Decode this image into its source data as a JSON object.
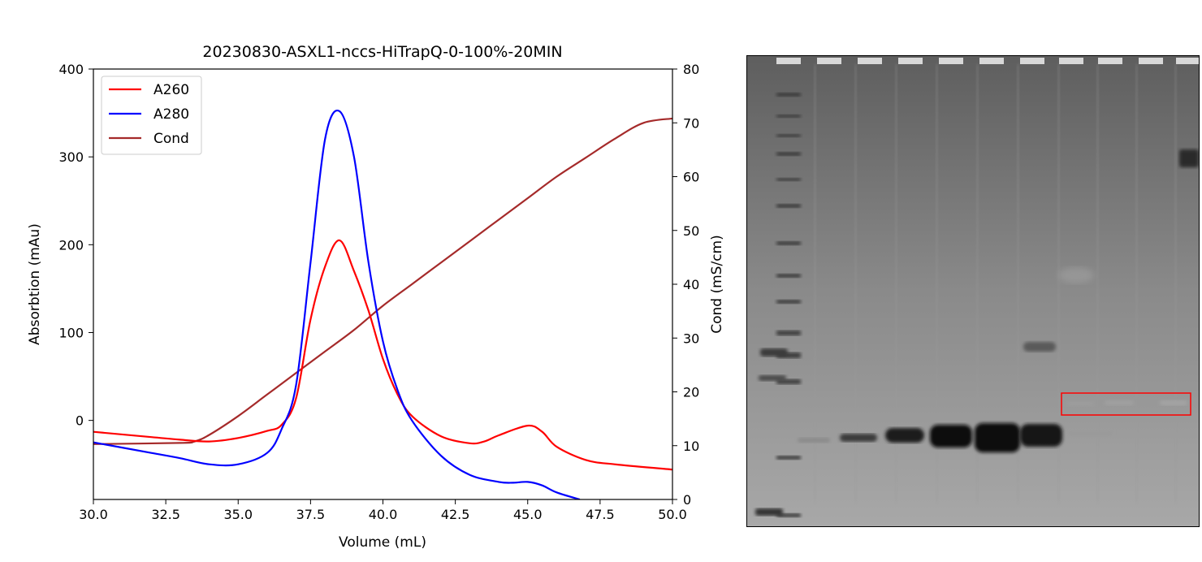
{
  "chart_data": {
    "type": "line",
    "title": "20230830-ASXL1-nccs-HiTrapQ-0-100%-20MIN",
    "xlabel": "Volume (mL)",
    "ylabel": "Absorbtion (mAu)",
    "y2label": "Cond (mS/cm)",
    "xlim": [
      30,
      50
    ],
    "ylim": [
      -90,
      400
    ],
    "y2lim": [
      0,
      80
    ],
    "xticks": [
      "30.0",
      "32.5",
      "35.0",
      "37.5",
      "40.0",
      "42.5",
      "45.0",
      "47.5",
      "50.0"
    ],
    "yticks": [
      "0",
      "100",
      "200",
      "300",
      "400"
    ],
    "y2ticks": [
      "0",
      "10",
      "20",
      "30",
      "40",
      "50",
      "60",
      "70",
      "80"
    ],
    "legend_position": "top-left",
    "series": [
      {
        "name": "A260",
        "axis": "left",
        "color": "#ff0000",
        "x": [
          30,
          32,
          33,
          34,
          35,
          36,
          36.5,
          37,
          37.5,
          38,
          38.5,
          39,
          39.5,
          40,
          40.5,
          41,
          42,
          43,
          43.5,
          44,
          45,
          45.5,
          46,
          47,
          48,
          50
        ],
        "y": [
          -13,
          -19,
          -22,
          -24,
          -20,
          -12,
          -5,
          25,
          115,
          175,
          205,
          170,
          125,
          70,
          30,
          5,
          -18,
          -26,
          -24,
          -17,
          -6,
          -13,
          -30,
          -45,
          -50,
          -56
        ]
      },
      {
        "name": "A280",
        "axis": "left",
        "color": "#0000ff",
        "x": [
          30,
          32,
          33,
          34,
          35,
          36,
          36.5,
          37,
          37.5,
          38,
          38.5,
          39,
          39.5,
          40,
          40.5,
          41,
          42,
          43,
          44,
          44.5,
          45,
          45.5,
          46,
          46.8
        ],
        "y": [
          -25,
          -37,
          -43,
          -50,
          -50,
          -37,
          -10,
          40,
          180,
          320,
          352,
          300,
          180,
          90,
          35,
          0,
          -40,
          -62,
          -70,
          -71,
          -70,
          -74,
          -82,
          -90
        ]
      },
      {
        "name": "Cond",
        "axis": "right",
        "color": "#a52a2a",
        "x": [
          30,
          33,
          33.5,
          34,
          35,
          36,
          37,
          38,
          39,
          40,
          41,
          42,
          43,
          44,
          45,
          46,
          47,
          48,
          49,
          50
        ],
        "y": [
          10.3,
          10.5,
          10.8,
          12,
          15.5,
          19.5,
          23.5,
          27.5,
          31.5,
          36,
          40,
          44,
          48,
          52,
          56,
          60,
          63.5,
          67,
          70,
          70.8
        ]
      }
    ]
  },
  "gel": {
    "background": "#888888",
    "highlight_color": "#ff0000"
  }
}
